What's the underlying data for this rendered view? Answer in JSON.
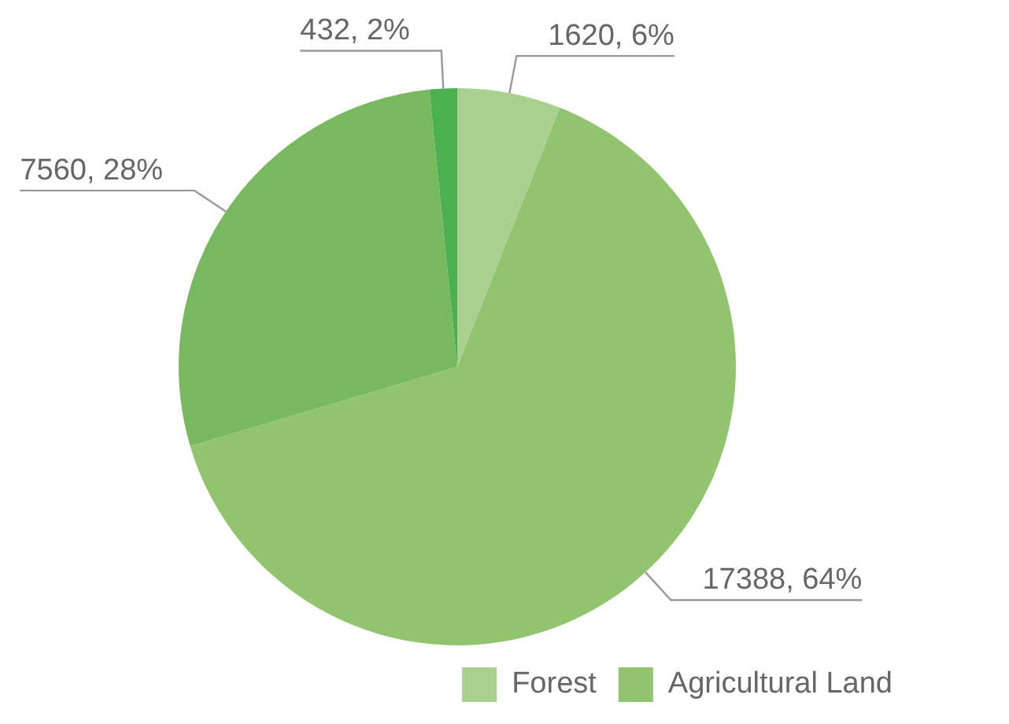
{
  "chart_data": {
    "type": "pie",
    "categories": [
      "Forest",
      "Agricultural Land",
      null,
      null
    ],
    "values": [
      1620,
      17388,
      7560,
      432
    ],
    "colors": [
      "#a9d08e",
      "#92c470",
      "#78b960",
      "#4caf50"
    ],
    "value_labels": [
      "1620, 6%",
      "17388, 64%",
      "7560, 28%",
      "432, 2%"
    ],
    "legend": "bottom right"
  }
}
